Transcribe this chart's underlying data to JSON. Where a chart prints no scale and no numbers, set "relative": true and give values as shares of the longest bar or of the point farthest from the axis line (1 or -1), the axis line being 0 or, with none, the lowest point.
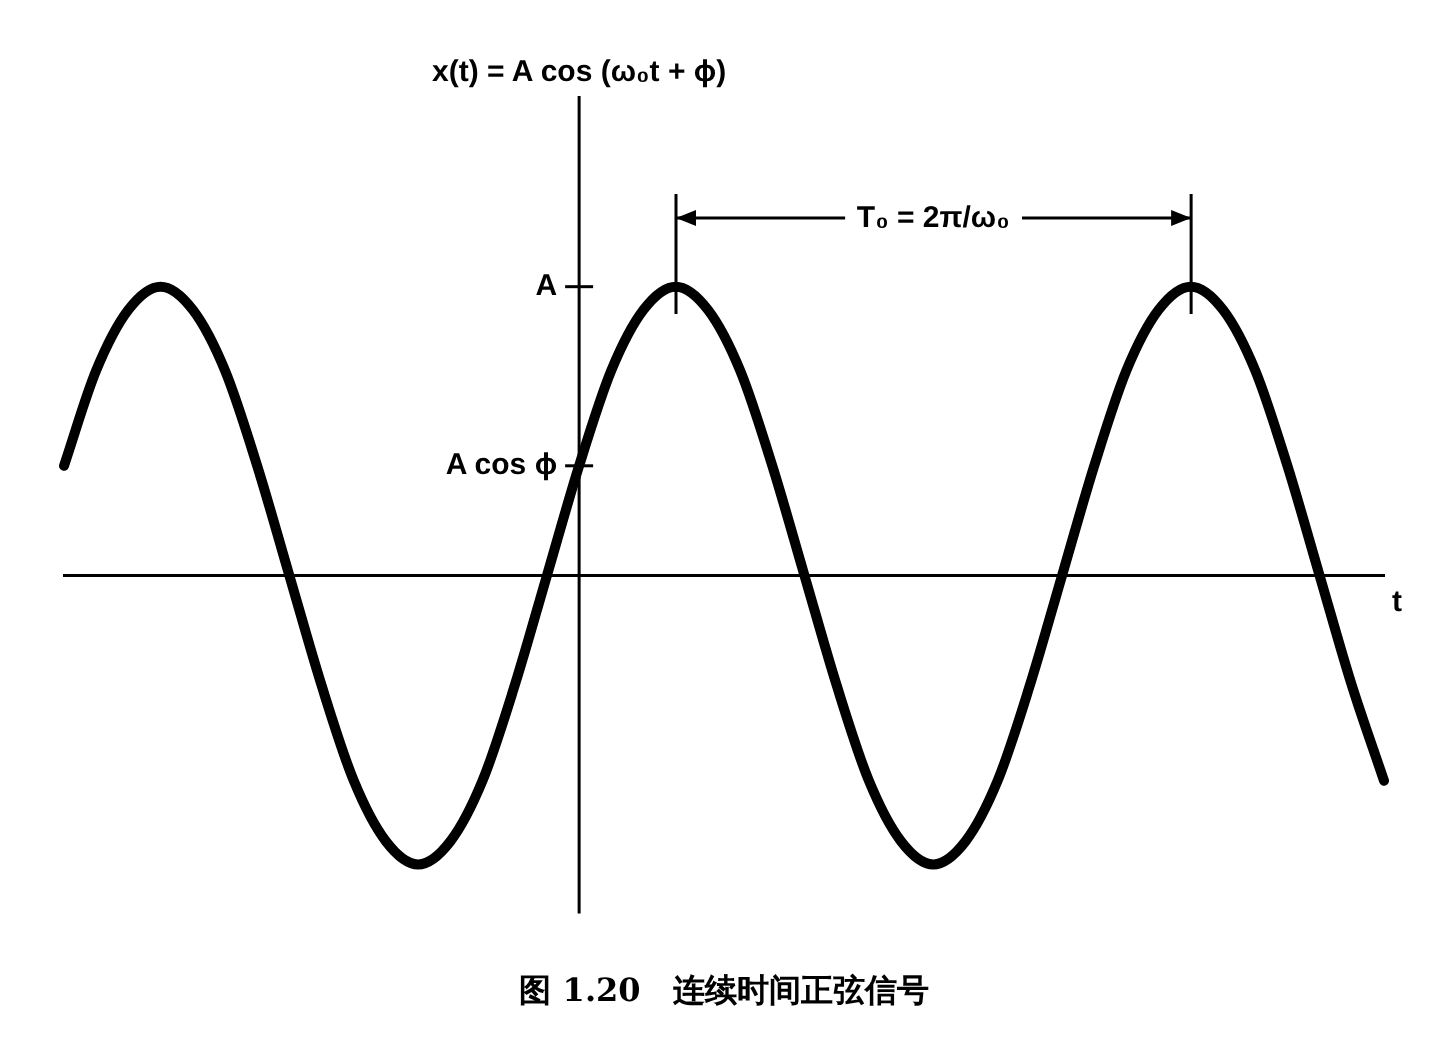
{
  "chart_data": {
    "type": "line",
    "title": "图 1.20　连续时间正弦信号",
    "xlabel": "t",
    "categories": [
      null,
      null,
      null,
      null,
      null,
      null,
      null,
      null,
      null,
      null,
      null,
      null,
      null,
      null,
      null,
      null,
      null,
      null,
      null,
      null,
      null,
      null,
      null,
      null,
      null,
      null,
      null,
      null,
      null,
      null,
      null,
      null,
      null,
      null,
      null,
      null,
      null,
      null,
      null,
      null,
      null,
      null
    ],
    "values": [
      0.38,
      0.71,
      0.92,
      1,
      0.92,
      0.71,
      0.38,
      0,
      -0.38,
      -0.71,
      -0.92,
      -1,
      -0.92,
      -0.71,
      -0.38,
      0,
      0.38,
      0.71,
      0.92,
      1,
      0.92,
      0.71,
      0.38,
      0,
      -0.38,
      -0.71,
      -0.92,
      -1,
      -0.92,
      -0.71,
      -0.38,
      0,
      0.38,
      0.71,
      0.92,
      1,
      0.92,
      0.71,
      0.38,
      0,
      -0.38,
      -0.71
    ],
    "color": "#000000",
    "relative": true,
    "annotations": [
      "x(t) = A cos (ω₀t + ϕ)",
      "A",
      "A cos ϕ",
      "T₀ = 2π/ω₀"
    ],
    "grid": false,
    "legend": false,
    "marker": "none",
    "line_style": "solid"
  }
}
